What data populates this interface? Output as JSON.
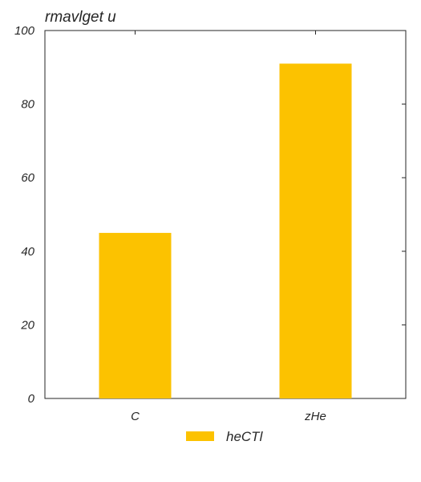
{
  "chart_data": {
    "type": "bar",
    "title": "rmavlget u",
    "categories": [
      "C",
      "zHe"
    ],
    "series": [
      {
        "name": "heCTl",
        "values": [
          45,
          91
        ],
        "color": "#fcc200"
      }
    ],
    "xlabel": "",
    "ylabel": "",
    "ylim": [
      0,
      100
    ],
    "yticks": [
      0,
      20,
      40,
      60,
      80,
      100
    ],
    "grid": false,
    "legend": "bottom-center"
  }
}
